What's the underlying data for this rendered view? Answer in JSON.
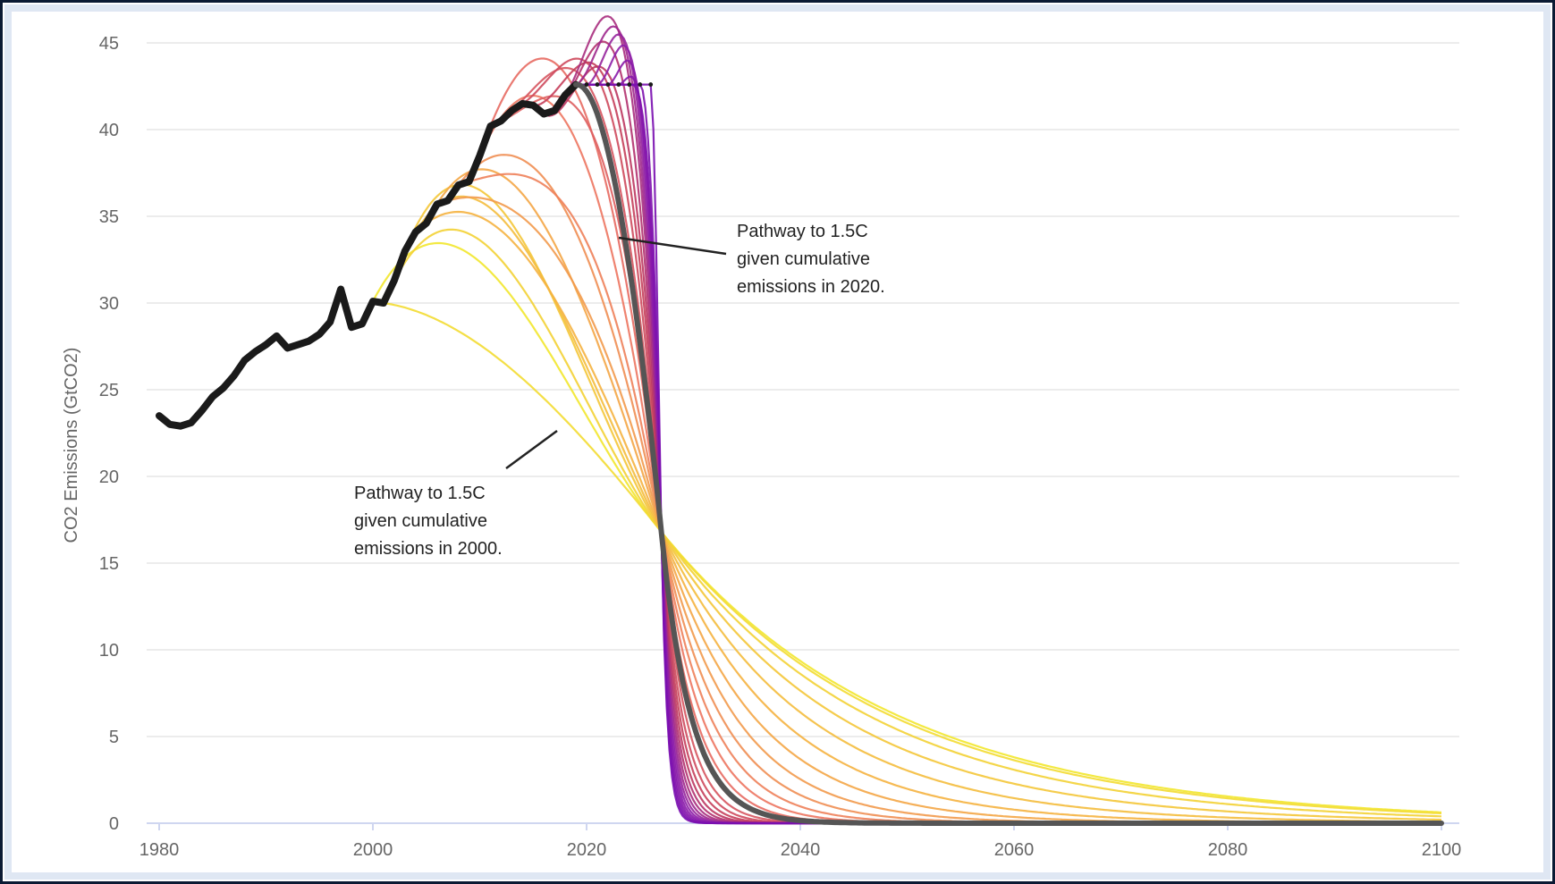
{
  "chart_data": {
    "type": "line",
    "title": "",
    "xlabel": "",
    "ylabel": "CO2 Emissions (GtCO2)",
    "xlim": [
      1980,
      2100
    ],
    "ylim": [
      0,
      45
    ],
    "x_ticks": [
      "1980",
      "2000",
      "2020",
      "2040",
      "2060",
      "2080",
      "2100"
    ],
    "y_ticks": [
      "0",
      "5",
      "10",
      "15",
      "20",
      "25",
      "30",
      "35",
      "40",
      "45"
    ],
    "grid": "horizontal",
    "pivot": {
      "year": 2027,
      "value": 16.8
    },
    "historical": {
      "name": "historical",
      "x": [
        1980,
        1981,
        1982,
        1983,
        1984,
        1985,
        1986,
        1987,
        1988,
        1989,
        1990,
        1991,
        1992,
        1993,
        1994,
        1995,
        1996,
        1997,
        1998,
        1999,
        2000,
        2001,
        2002,
        2003,
        2004,
        2005,
        2006,
        2007,
        2008,
        2009,
        2010,
        2011,
        2012,
        2013,
        2014,
        2015,
        2016,
        2017,
        2018,
        2019
      ],
      "y": [
        23.5,
        23.0,
        22.9,
        23.1,
        23.8,
        24.6,
        25.1,
        25.8,
        26.7,
        27.2,
        27.6,
        28.1,
        27.4,
        27.6,
        27.8,
        28.2,
        28.9,
        30.8,
        28.6,
        28.8,
        30.1,
        30.0,
        31.3,
        33.0,
        34.1,
        34.6,
        35.7,
        35.9,
        36.8,
        37.0,
        38.5,
        40.2,
        40.5,
        41.1,
        41.5,
        41.4,
        40.9,
        41.1,
        42.0,
        42.6
      ]
    },
    "plateau_value": 42.6,
    "pathway_2000": {
      "start_year": 2000,
      "start_value": 30.1,
      "end_value_2100": 0.6
    },
    "pathway_2020": {
      "start_year": 2019,
      "start_value": 42.6
    },
    "annotations": [
      {
        "id": "a2020",
        "lines": [
          "Pathway to 1.5C",
          "given cumulative",
          "emissions in 2020."
        ]
      },
      {
        "id": "a2000",
        "lines": [
          "Pathway to 1.5C",
          "given cumulative",
          "emissions in 2000."
        ]
      }
    ],
    "colors": {
      "historical": "#1a1a1a",
      "pathway_2020": "#555555",
      "gradient": [
        "#f2e72e",
        "#f5b041",
        "#ec7063",
        "#c0395a",
        "#8e1fa8",
        "#7a0fb0"
      ],
      "grid": "#e6e6e6"
    }
  }
}
